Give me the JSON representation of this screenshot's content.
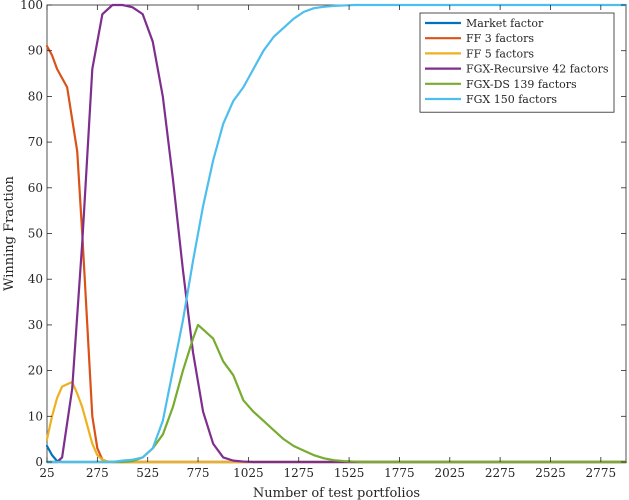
{
  "chart_data": {
    "type": "line",
    "xlabel": "Number of test portfolios",
    "ylabel": "Winning Fraction",
    "xlim": [
      25,
      2900
    ],
    "ylim": [
      0,
      100
    ],
    "xticks": [
      25,
      275,
      525,
      775,
      1025,
      1275,
      1525,
      1775,
      2025,
      2275,
      2525,
      2775
    ],
    "yticks": [
      0,
      10,
      20,
      30,
      40,
      50,
      60,
      70,
      80,
      90,
      100
    ],
    "grid": false,
    "legend_position": "top-right",
    "series": [
      {
        "name": "Market factor",
        "color": "#0072BD",
        "x": [
          25,
          50,
          75,
          100,
          150,
          200,
          300,
          400,
          2900
        ],
        "y": [
          3.5,
          1.5,
          0.2,
          0,
          0,
          0,
          0,
          0,
          0
        ]
      },
      {
        "name": "FF 3 factors",
        "color": "#D95319",
        "x": [
          25,
          50,
          75,
          100,
          125,
          150,
          175,
          200,
          225,
          250,
          275,
          300,
          325,
          350,
          400,
          500,
          2900
        ],
        "y": [
          91,
          89,
          86,
          84,
          82,
          75,
          68,
          50,
          30,
          10,
          3,
          0.5,
          0.1,
          0,
          0,
          0,
          0
        ]
      },
      {
        "name": "FF 5 factors",
        "color": "#EDB120",
        "x": [
          25,
          50,
          75,
          100,
          125,
          150,
          175,
          200,
          225,
          250,
          275,
          300,
          325,
          350,
          400,
          500,
          2900
        ],
        "y": [
          5,
          10,
          14,
          16.5,
          17,
          17.5,
          15,
          12,
          8,
          4,
          1.5,
          0.5,
          0.1,
          0,
          0,
          0,
          0
        ]
      },
      {
        "name": "FGX-Recursive 42 factors",
        "color": "#7E2F8E",
        "x": [
          25,
          50,
          75,
          100,
          150,
          200,
          250,
          300,
          350,
          400,
          450,
          500,
          550,
          600,
          650,
          700,
          750,
          800,
          850,
          900,
          950,
          1000,
          1050,
          1100,
          2900
        ],
        "y": [
          0,
          0,
          0,
          1,
          16,
          48,
          86,
          98,
          100,
          100,
          99.5,
          98,
          92,
          80,
          62,
          42,
          24,
          11,
          4,
          1,
          0.3,
          0.1,
          0,
          0,
          0
        ]
      },
      {
        "name": "FGX-DS 139 factors",
        "color": "#77AC30",
        "x": [
          25,
          300,
          400,
          450,
          500,
          550,
          600,
          650,
          700,
          750,
          775,
          800,
          850,
          900,
          950,
          1000,
          1050,
          1100,
          1150,
          1200,
          1250,
          1300,
          1350,
          1400,
          1450,
          1500,
          1550,
          1600,
          2900
        ],
        "y": [
          0,
          0,
          0,
          0.2,
          1,
          3,
          6,
          12,
          20,
          27,
          30,
          29,
          27,
          22,
          19,
          13.5,
          11,
          9,
          7,
          5,
          3.5,
          2.5,
          1.5,
          0.8,
          0.4,
          0.2,
          0.1,
          0,
          0
        ]
      },
      {
        "name": "FGX 150 factors",
        "color": "#4DBEEE",
        "x": [
          25,
          350,
          400,
          450,
          500,
          550,
          600,
          650,
          700,
          750,
          800,
          850,
          900,
          950,
          1000,
          1050,
          1100,
          1150,
          1200,
          1250,
          1300,
          1350,
          1400,
          1450,
          1500,
          1550,
          1600,
          2900
        ],
        "y": [
          0,
          0,
          0.3,
          0.5,
          1,
          3,
          9,
          20,
          31,
          44,
          56,
          66,
          74,
          79,
          82,
          86,
          90,
          93,
          95,
          97,
          98.5,
          99.3,
          99.6,
          99.8,
          99.9,
          100,
          100,
          100
        ]
      }
    ]
  }
}
